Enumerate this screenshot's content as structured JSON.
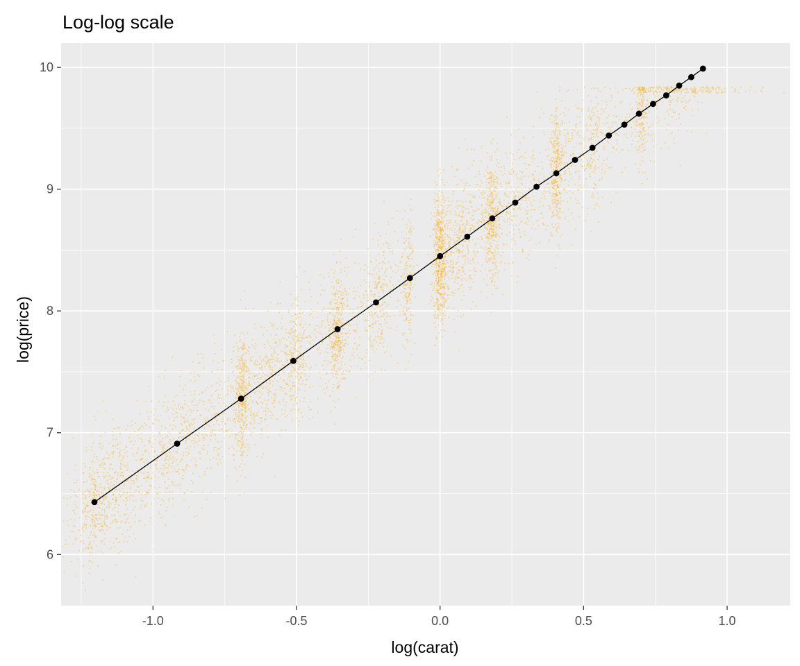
{
  "chart_data": {
    "type": "scatter",
    "title": "Log-log scale",
    "xlabel": "log(carat)",
    "ylabel": "log(price)",
    "xlim": [
      -1.32,
      1.22
    ],
    "ylim": [
      5.58,
      10.2
    ],
    "x_ticks": [
      -1.0,
      -0.5,
      0.0,
      0.5,
      1.0
    ],
    "x_tick_labels": [
      "-1.0",
      "-0.5",
      "0.0",
      "0.5",
      "1.0"
    ],
    "y_ticks": [
      6,
      7,
      8,
      9,
      10
    ],
    "y_tick_labels": [
      "6",
      "7",
      "8",
      "9",
      "10"
    ],
    "grid": true,
    "legend": "none",
    "colors": {
      "panel_background": "#EBEBEB",
      "grid": "#FFFFFF",
      "scatter": "#FFA500",
      "fit": "#000000",
      "tick_label": "#4D4D4D"
    },
    "series": [
      {
        "type": "line+points",
        "x": [
          -1.204,
          -0.916,
          -0.693,
          -0.511,
          -0.357,
          -0.223,
          -0.105,
          0.0,
          0.095,
          0.182,
          0.262,
          0.336,
          0.405,
          0.47,
          0.531,
          0.588,
          0.642,
          0.693,
          0.742,
          0.788,
          0.833,
          0.875,
          0.916
        ],
        "y": [
          6.43,
          6.91,
          7.28,
          7.59,
          7.85,
          8.07,
          8.27,
          8.45,
          8.61,
          8.76,
          8.89,
          9.02,
          9.13,
          9.24,
          9.34,
          9.44,
          9.53,
          9.62,
          9.7,
          9.77,
          9.85,
          9.92,
          9.99
        ]
      }
    ]
  }
}
